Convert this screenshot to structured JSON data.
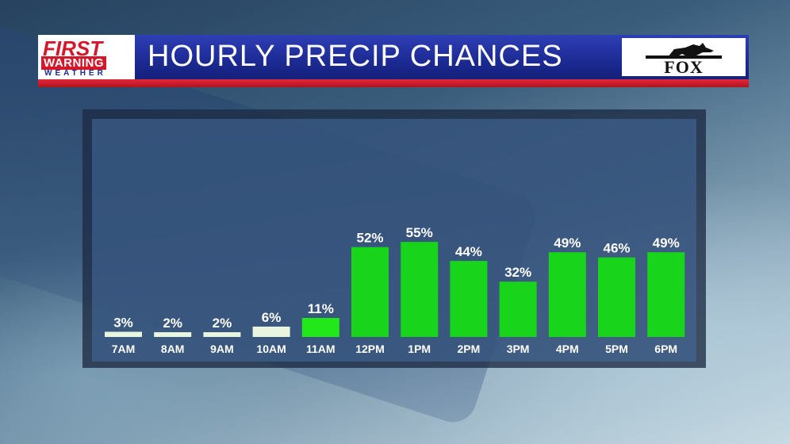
{
  "header": {
    "logo_first": "FIRST",
    "logo_warning": "WARNING",
    "logo_weather": "WEATHER",
    "title": "HOURLY PRECIP CHANCES",
    "station_logo": "FOX"
  },
  "colors": {
    "header_blue": "#1c2a93",
    "header_red": "#d4182b",
    "bar_low": "#e8f5df",
    "bar_bright": "#22e81a",
    "bar_green": "#18d41a"
  },
  "chart_data": {
    "type": "bar",
    "title": "HOURLY PRECIP CHANCES",
    "categories": [
      "7AM",
      "8AM",
      "9AM",
      "10AM",
      "11AM",
      "12PM",
      "1PM",
      "2PM",
      "3PM",
      "4PM",
      "5PM",
      "6PM"
    ],
    "values": [
      3,
      2,
      2,
      6,
      11,
      52,
      55,
      44,
      32,
      49,
      46,
      49
    ],
    "labels": [
      "3%",
      "2%",
      "2%",
      "6%",
      "11%",
      "52%",
      "55%",
      "44%",
      "32%",
      "49%",
      "46%",
      "49%"
    ],
    "unit": "%",
    "ylim": [
      0,
      100
    ],
    "grid": false
  }
}
